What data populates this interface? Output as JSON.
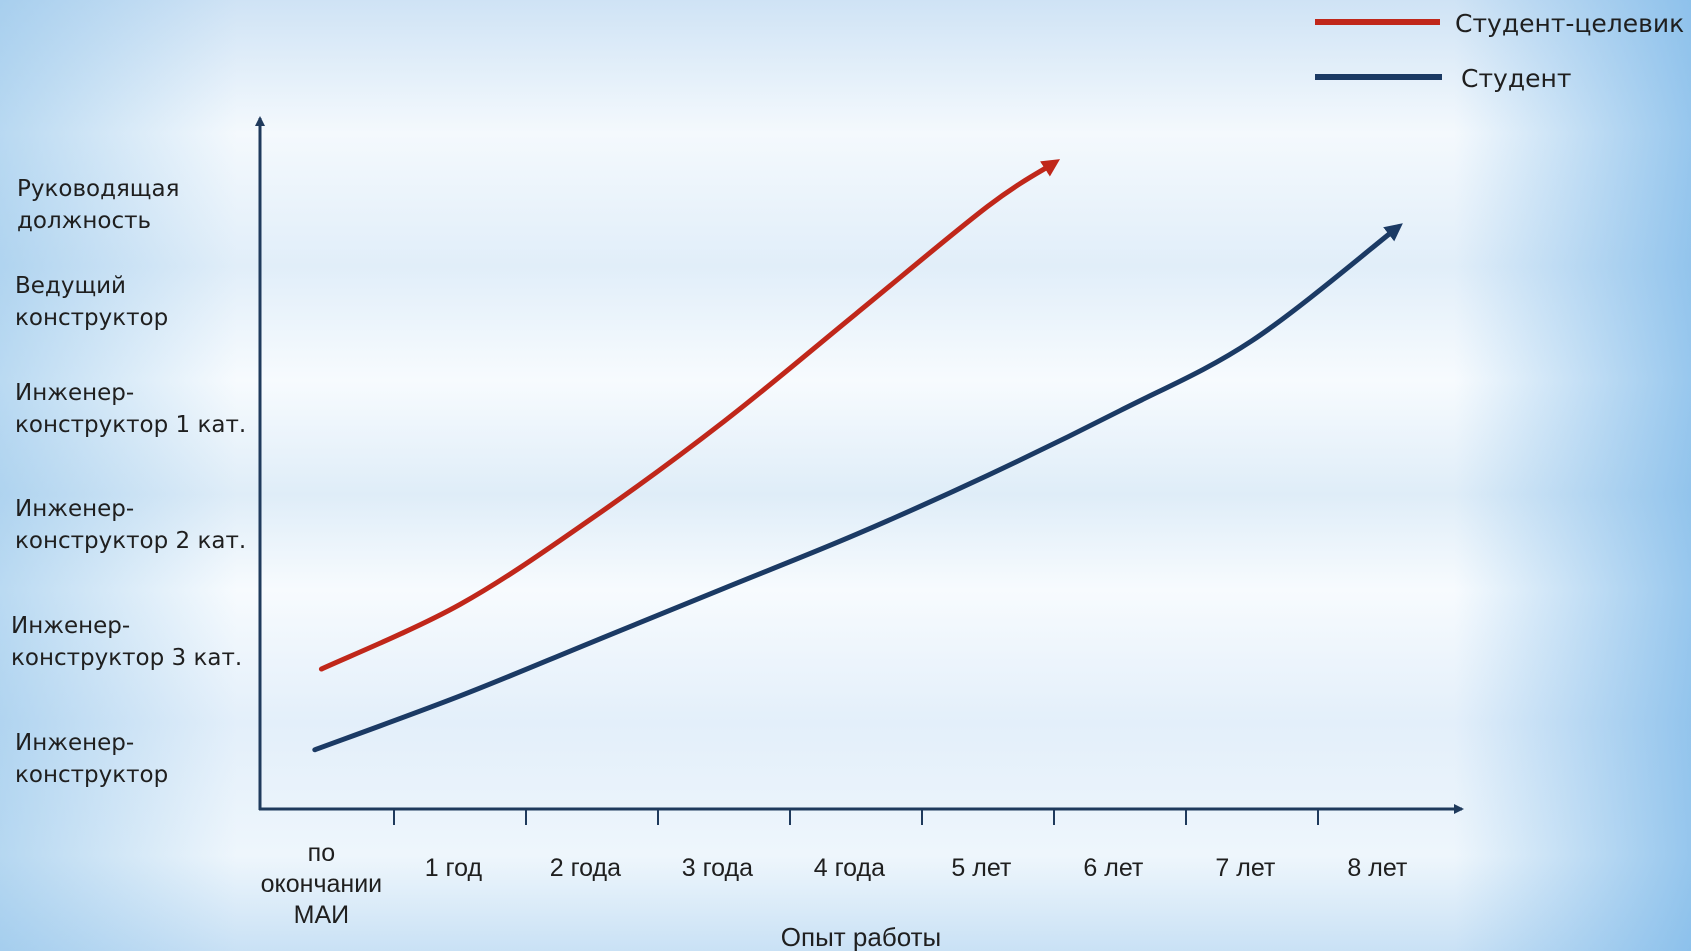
{
  "chart_data": {
    "type": "line",
    "xlabel": "Опыт работы",
    "categories": [
      "по\nокончании\nМАИ",
      "1 год",
      "2 года",
      "3 года",
      "4 года",
      "5 лет",
      "6 лет",
      "7 лет",
      "8 лет"
    ],
    "y_levels": [
      "Инженер-\nконструктор",
      "Инженер-\nконструктор 3 кат.",
      "Инженер-\nконструктор 2 кат.",
      "Инженер-\nконструктор 1 кат.",
      "Ведущий\nконструктор",
      "Руководящая\nдолжность"
    ],
    "xlim": [
      0,
      9
    ],
    "ylim": [
      0,
      6.4
    ],
    "series": [
      {
        "name": "Студент-целевик",
        "color": "#c0271a",
        "x": [
          0.45,
          1.5,
          2.5,
          3.5,
          4.5,
          5.5,
          6.0
        ],
        "y": [
          1.3,
          1.9,
          2.7,
          3.6,
          4.6,
          5.6,
          6.0
        ]
      },
      {
        "name": "Студент",
        "color": "#1b3a64",
        "x": [
          0.4,
          1.5,
          2.5,
          3.5,
          4.5,
          5.5,
          6.5,
          7.5,
          8.6
        ],
        "y": [
          0.55,
          1.05,
          1.55,
          2.05,
          2.55,
          3.1,
          3.7,
          4.35,
          5.4
        ]
      }
    ],
    "legend": {
      "position": "top-right",
      "items": [
        {
          "label": "Студент-целевик",
          "color": "#c0271a"
        },
        {
          "label": "Студент",
          "color": "#1b3a64"
        }
      ]
    },
    "grid": false
  }
}
